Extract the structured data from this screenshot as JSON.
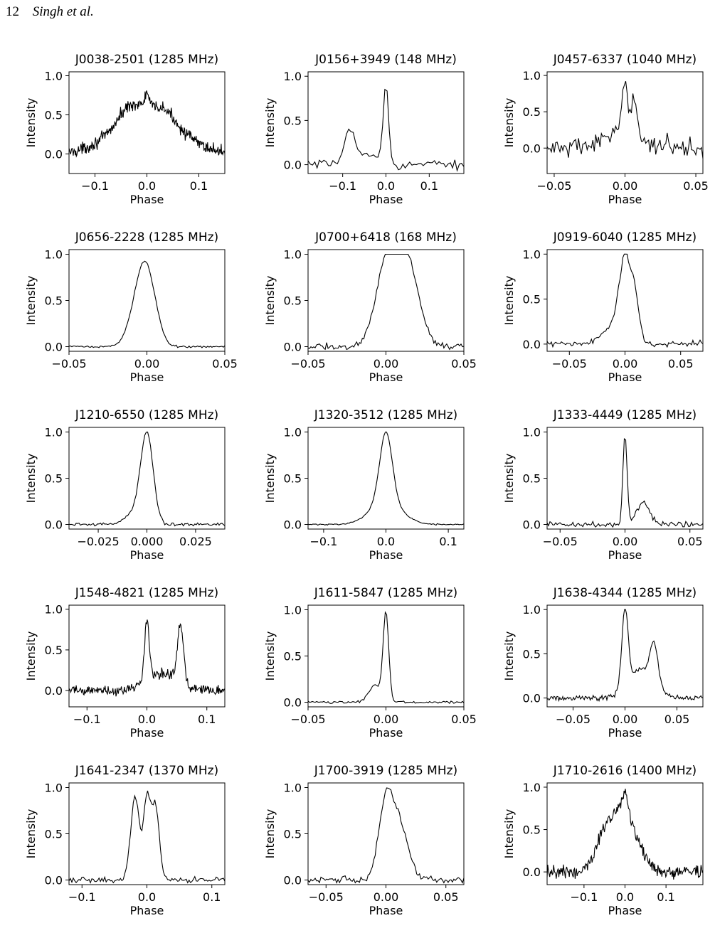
{
  "page": {
    "number": "12",
    "running_header": "Singh et al."
  },
  "chart_data": [
    {
      "type": "line",
      "title": "J0038-2501 (1285 MHz)",
      "xlabel": "Phase",
      "ylabel": "Intensity",
      "xlim": [
        -0.15,
        0.15
      ],
      "ylim": [
        -0.25,
        1.05
      ],
      "xticks": [
        -0.1,
        0.0,
        0.1
      ],
      "xtick_labels": [
        "−0.1",
        "0.0",
        "0.1"
      ],
      "yticks": [
        0.0,
        0.5,
        1.0
      ],
      "ytick_labels": [
        "0.0",
        "0.5",
        "1.0"
      ],
      "profile": {
        "noise": 0.055,
        "points": 300,
        "comps": [
          [
            0.0,
            0.55,
            0.06
          ],
          [
            -0.035,
            0.15,
            0.02
          ],
          [
            0.035,
            0.1,
            0.02
          ],
          [
            0.0,
            0.18,
            0.004
          ]
        ]
      }
    },
    {
      "type": "line",
      "title": "J0156+3949 (148 MHz)",
      "xlabel": "Phase",
      "ylabel": "Intensity",
      "xlim": [
        -0.18,
        0.18
      ],
      "ylim": [
        -0.1,
        1.05
      ],
      "xticks": [
        -0.1,
        0.0,
        0.1
      ],
      "xtick_labels": [
        "−0.1",
        "0.0",
        "0.1"
      ],
      "yticks": [
        0.0,
        0.5,
        1.0
      ],
      "ytick_labels": [
        "0.0",
        "0.5",
        "1.0"
      ],
      "profile": {
        "noise": 0.035,
        "points": 70,
        "comps": [
          [
            0.0,
            0.88,
            0.006
          ],
          [
            -0.085,
            0.38,
            0.012
          ],
          [
            -0.04,
            0.12,
            0.025
          ]
        ]
      }
    },
    {
      "type": "line",
      "title": "J0457-6337 (1040 MHz)",
      "xlabel": "Phase",
      "ylabel": "Intensity",
      "xlim": [
        -0.055,
        0.055
      ],
      "ylim": [
        -0.35,
        1.05
      ],
      "xticks": [
        -0.05,
        0.0,
        0.05
      ],
      "xtick_labels": [
        "−0.05",
        "0.00",
        "0.05"
      ],
      "yticks": [
        0.0,
        0.5,
        1.0
      ],
      "ytick_labels": [
        "0.0",
        "0.5",
        "1.0"
      ],
      "profile": {
        "noise": 0.1,
        "points": 110,
        "comps": [
          [
            0.0,
            0.65,
            0.002
          ],
          [
            0.006,
            0.55,
            0.0018
          ],
          [
            0.0,
            0.2,
            0.015
          ]
        ]
      }
    },
    {
      "type": "line",
      "title": "J0656-2228 (1285 MHz)",
      "xlabel": "Phase",
      "ylabel": "Intensity",
      "xlim": [
        -0.05,
        0.05
      ],
      "ylim": [
        -0.05,
        1.05
      ],
      "xticks": [
        -0.05,
        0.0,
        0.05
      ],
      "xtick_labels": [
        "−0.05",
        "0.00",
        "0.05"
      ],
      "yticks": [
        0.0,
        0.5,
        1.0
      ],
      "ytick_labels": [
        "0.0",
        "0.5",
        "1.0"
      ],
      "profile": {
        "noise": 0.008,
        "points": 110,
        "comps": [
          [
            0.0,
            0.72,
            0.006
          ],
          [
            -0.006,
            0.3,
            0.006
          ]
        ]
      }
    },
    {
      "type": "line",
      "title": "J0700+6418 (168 MHz)",
      "xlabel": "Phase",
      "ylabel": "Intensity",
      "xlim": [
        -0.05,
        0.05
      ],
      "ylim": [
        -0.05,
        1.05
      ],
      "xticks": [
        -0.05,
        0.0,
        0.05
      ],
      "xtick_labels": [
        "−0.05",
        "0.00",
        "0.05"
      ],
      "yticks": [
        0.0,
        0.5,
        1.0
      ],
      "ytick_labels": [
        "0.0",
        "0.5",
        "1.0"
      ],
      "profile": {
        "noise": 0.025,
        "points": 110,
        "comps": [
          [
            0.0,
            0.8,
            0.007
          ],
          [
            0.015,
            0.78,
            0.007
          ],
          [
            0.007,
            0.3,
            0.006
          ]
        ]
      }
    },
    {
      "type": "line",
      "title": "J0919-6040 (1285 MHz)",
      "xlabel": "Phase",
      "ylabel": "Intensity",
      "xlim": [
        -0.07,
        0.07
      ],
      "ylim": [
        -0.08,
        1.05
      ],
      "xticks": [
        -0.05,
        0.0,
        0.05
      ],
      "xtick_labels": [
        "−0.05",
        "0.00",
        "0.05"
      ],
      "yticks": [
        0.0,
        0.5,
        1.0
      ],
      "ytick_labels": [
        "0.0",
        "0.5",
        "1.0"
      ],
      "profile": {
        "noise": 0.025,
        "points": 110,
        "comps": [
          [
            0.0,
            0.85,
            0.005
          ],
          [
            0.009,
            0.45,
            0.004
          ],
          [
            -0.01,
            0.2,
            0.01
          ]
        ]
      }
    },
    {
      "type": "line",
      "title": "J1210-6550 (1285 MHz)",
      "xlabel": "Phase",
      "ylabel": "Intensity",
      "xlim": [
        -0.04,
        0.04
      ],
      "ylim": [
        -0.05,
        1.05
      ],
      "xticks": [
        -0.025,
        0.0,
        0.025
      ],
      "xtick_labels": [
        "−0.025",
        "0.000",
        "0.025"
      ],
      "yticks": [
        0.0,
        0.5,
        1.0
      ],
      "ytick_labels": [
        "0.0",
        "0.5",
        "1.0"
      ],
      "profile": {
        "noise": 0.012,
        "points": 110,
        "comps": [
          [
            0.0,
            0.95,
            0.0032
          ],
          [
            -0.006,
            0.12,
            0.005
          ]
        ]
      }
    },
    {
      "type": "line",
      "title": "J1320-3512 (1285 MHz)",
      "xlabel": "Phase",
      "ylabel": "Intensity",
      "xlim": [
        -0.125,
        0.125
      ],
      "ylim": [
        -0.05,
        1.05
      ],
      "xticks": [
        -0.1,
        0.0,
        0.1
      ],
      "xtick_labels": [
        "−0.1",
        "0.0",
        "0.1"
      ],
      "yticks": [
        0.0,
        0.5,
        1.0
      ],
      "ytick_labels": [
        "0.0",
        "0.5",
        "1.0"
      ],
      "profile": {
        "noise": 0.005,
        "points": 130,
        "comps": [
          [
            0.0,
            0.75,
            0.01
          ],
          [
            0.0,
            0.25,
            0.025
          ]
        ]
      }
    },
    {
      "type": "line",
      "title": "J1333-4449 (1285 MHz)",
      "xlabel": "Phase",
      "ylabel": "Intensity",
      "xlim": [
        -0.06,
        0.06
      ],
      "ylim": [
        -0.05,
        1.05
      ],
      "xticks": [
        -0.05,
        0.0,
        0.05
      ],
      "xtick_labels": [
        "−0.05",
        "0.00",
        "0.05"
      ],
      "yticks": [
        0.0,
        0.5,
        1.0
      ],
      "ytick_labels": [
        "0.0",
        "0.5",
        "1.0"
      ],
      "profile": {
        "noise": 0.02,
        "points": 110,
        "comps": [
          [
            0.0,
            0.98,
            0.0016
          ],
          [
            0.014,
            0.24,
            0.005
          ]
        ]
      }
    },
    {
      "type": "line",
      "title": "J1548-4821 (1285 MHz)",
      "xlabel": "Phase",
      "ylabel": "Intensity",
      "xlim": [
        -0.13,
        0.13
      ],
      "ylim": [
        -0.2,
        1.05
      ],
      "xticks": [
        -0.1,
        0.0,
        0.1
      ],
      "xtick_labels": [
        "−0.1",
        "0.0",
        "0.1"
      ],
      "yticks": [
        0.0,
        0.5,
        1.0
      ],
      "ytick_labels": [
        "0.0",
        "0.5",
        "1.0"
      ],
      "profile": {
        "noise": 0.045,
        "points": 260,
        "comps": [
          [
            0.0,
            0.75,
            0.004
          ],
          [
            0.056,
            0.72,
            0.005
          ],
          [
            0.025,
            0.22,
            0.025
          ]
        ]
      }
    },
    {
      "type": "line",
      "title": "J1611-5847 (1285 MHz)",
      "xlabel": "Phase",
      "ylabel": "Intensity",
      "xlim": [
        -0.05,
        0.05
      ],
      "ylim": [
        -0.05,
        1.05
      ],
      "xticks": [
        -0.05,
        0.0,
        0.05
      ],
      "xtick_labels": [
        "−0.05",
        "0.00",
        "0.05"
      ],
      "yticks": [
        0.0,
        0.5,
        1.0
      ],
      "ytick_labels": [
        "0.0",
        "0.5",
        "1.0"
      ],
      "profile": {
        "noise": 0.008,
        "points": 110,
        "comps": [
          [
            0.0,
            0.95,
            0.0018
          ],
          [
            -0.007,
            0.18,
            0.004
          ]
        ]
      }
    },
    {
      "type": "line",
      "title": "J1638-4344 (1285 MHz)",
      "xlabel": "Phase",
      "ylabel": "Intensity",
      "xlim": [
        -0.075,
        0.075
      ],
      "ylim": [
        -0.1,
        1.05
      ],
      "xticks": [
        -0.05,
        0.0,
        0.05
      ],
      "xtick_labels": [
        "−0.05",
        "0.00",
        "0.05"
      ],
      "yticks": [
        0.0,
        0.5,
        1.0
      ],
      "ytick_labels": [
        "0.0",
        "0.5",
        "1.0"
      ],
      "profile": {
        "noise": 0.02,
        "points": 160,
        "comps": [
          [
            0.0,
            0.9,
            0.003
          ],
          [
            0.028,
            0.45,
            0.004
          ],
          [
            0.015,
            0.32,
            0.012
          ]
        ]
      }
    },
    {
      "type": "line",
      "title": "J1641-2347 (1370 MHz)",
      "xlabel": "Phase",
      "ylabel": "Intensity",
      "xlim": [
        -0.12,
        0.12
      ],
      "ylim": [
        -0.05,
        1.05
      ],
      "xticks": [
        -0.1,
        0.0,
        0.1
      ],
      "xtick_labels": [
        "−0.1",
        "0.0",
        "0.1"
      ],
      "yticks": [
        0.0,
        0.5,
        1.0
      ],
      "ytick_labels": [
        "0.0",
        "0.5",
        "1.0"
      ],
      "profile": {
        "noise": 0.02,
        "points": 110,
        "comps": [
          [
            -0.018,
            0.9,
            0.007
          ],
          [
            0.0,
            0.85,
            0.005
          ],
          [
            0.013,
            0.82,
            0.006
          ]
        ]
      }
    },
    {
      "type": "line",
      "title": "J1700-3919 (1285 MHz)",
      "xlabel": "Phase",
      "ylabel": "Intensity",
      "xlim": [
        -0.065,
        0.065
      ],
      "ylim": [
        -0.05,
        1.05
      ],
      "xticks": [
        -0.05,
        0.0,
        0.05
      ],
      "xtick_labels": [
        "−0.05",
        "0.00",
        "0.05"
      ],
      "yticks": [
        0.0,
        0.5,
        1.0
      ],
      "ytick_labels": [
        "0.0",
        "0.5",
        "1.0"
      ],
      "profile": {
        "noise": 0.025,
        "points": 110,
        "comps": [
          [
            0.0,
            0.85,
            0.006
          ],
          [
            0.012,
            0.55,
            0.007
          ]
        ]
      }
    },
    {
      "type": "line",
      "title": "J1710-2616 (1400 MHz)",
      "xlabel": "Phase",
      "ylabel": "Intensity",
      "xlim": [
        -0.19,
        0.19
      ],
      "ylim": [
        -0.15,
        1.05
      ],
      "xticks": [
        -0.1,
        0.0,
        0.1
      ],
      "xtick_labels": [
        "−0.1",
        "0.0",
        "0.1"
      ],
      "yticks": [
        0.0,
        0.5,
        1.0
      ],
      "ytick_labels": [
        "0.0",
        "0.5",
        "1.0"
      ],
      "profile": {
        "noise": 0.055,
        "points": 240,
        "comps": [
          [
            0.0,
            0.7,
            0.03
          ],
          [
            -0.05,
            0.35,
            0.025
          ],
          [
            0.0,
            0.2,
            0.006
          ]
        ]
      }
    }
  ]
}
